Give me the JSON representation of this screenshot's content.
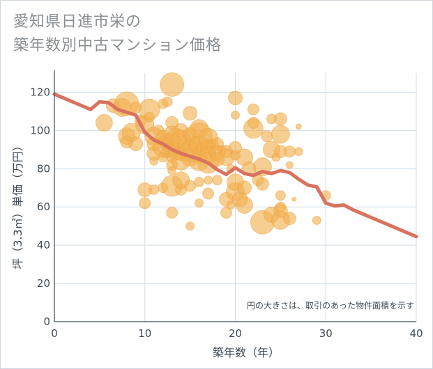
{
  "title": {
    "line1": "愛知県日進市栄の",
    "line2": "築年数別中古マンション価格"
  },
  "colors": {
    "bubble_fill": "#f2b04f",
    "bubble_stroke": "#e9a13a",
    "line": "#d9725e",
    "grid": "#cfdde8",
    "plot_bg": "#ffffff",
    "axis": "#3f4a55"
  },
  "chart_data": {
    "type": "scatter",
    "xlabel": "築年数（年）",
    "ylabel": "坪（3.3㎡）単価（万円）",
    "xlim": [
      0,
      40
    ],
    "ylim": [
      0,
      130
    ],
    "xticks": [
      "0",
      "10",
      "20",
      "30",
      "40"
    ],
    "yticks": [
      "0",
      "20",
      "40",
      "60",
      "80",
      "100",
      "120"
    ],
    "grid": true,
    "note": "円の大きさは、取引のあった物件面積を示す",
    "trend_line": {
      "x": [
        0,
        1,
        2,
        3,
        4,
        5,
        6,
        7,
        8,
        9,
        10,
        11,
        12,
        13,
        14,
        15,
        16,
        17,
        18,
        19,
        20,
        21,
        22,
        23,
        24,
        25,
        26,
        27,
        28,
        29,
        30,
        31,
        32,
        33,
        34,
        35,
        36,
        37,
        38,
        39,
        40
      ],
      "y": [
        119,
        117,
        115,
        113,
        111,
        115,
        114.5,
        111,
        109.5,
        108,
        99,
        95,
        93,
        90,
        88,
        86.5,
        85,
        83,
        79.5,
        77,
        80.5,
        77.5,
        76.5,
        78.5,
        77.5,
        79,
        78,
        74.5,
        71.5,
        70.5,
        62,
        60.5,
        61,
        58.5,
        56.5,
        54.5,
        52.5,
        50.5,
        48.5,
        46.5,
        44.5
      ]
    },
    "bubbles": [
      {
        "x": 5.5,
        "y": 104,
        "size": 12
      },
      {
        "x": 6.5,
        "y": 113,
        "size": 10
      },
      {
        "x": 7.5,
        "y": 112,
        "size": 13
      },
      {
        "x": 8,
        "y": 114,
        "size": 17
      },
      {
        "x": 8,
        "y": 97,
        "size": 12
      },
      {
        "x": 8,
        "y": 94,
        "size": 9
      },
      {
        "x": 8.5,
        "y": 99,
        "size": 13
      },
      {
        "x": 9,
        "y": 93,
        "size": 10
      },
      {
        "x": 9,
        "y": 112,
        "size": 8
      },
      {
        "x": 9.5,
        "y": 105,
        "size": 8
      },
      {
        "x": 10,
        "y": 103,
        "size": 13
      },
      {
        "x": 10.5,
        "y": 111,
        "size": 15
      },
      {
        "x": 10.5,
        "y": 107,
        "size": 7
      },
      {
        "x": 11,
        "y": 97,
        "size": 13
      },
      {
        "x": 11,
        "y": 93,
        "size": 10
      },
      {
        "x": 11,
        "y": 88,
        "size": 10
      },
      {
        "x": 11,
        "y": 84,
        "size": 6
      },
      {
        "x": 11.5,
        "y": 100,
        "size": 8
      },
      {
        "x": 12,
        "y": 114,
        "size": 7
      },
      {
        "x": 12,
        "y": 96,
        "size": 11
      },
      {
        "x": 12,
        "y": 91,
        "size": 14
      },
      {
        "x": 12,
        "y": 86,
        "size": 7
      },
      {
        "x": 12.5,
        "y": 115,
        "size": 7
      },
      {
        "x": 12.5,
        "y": 94,
        "size": 12
      },
      {
        "x": 12.5,
        "y": 89,
        "size": 9
      },
      {
        "x": 13,
        "y": 124,
        "size": 17
      },
      {
        "x": 13,
        "y": 104,
        "size": 9
      },
      {
        "x": 13,
        "y": 98,
        "size": 12
      },
      {
        "x": 13,
        "y": 94,
        "size": 13
      },
      {
        "x": 13,
        "y": 90,
        "size": 11
      },
      {
        "x": 13,
        "y": 86,
        "size": 8
      },
      {
        "x": 13,
        "y": 82,
        "size": 8
      },
      {
        "x": 13,
        "y": 79,
        "size": 6
      },
      {
        "x": 13.5,
        "y": 96,
        "size": 14
      },
      {
        "x": 13.5,
        "y": 89,
        "size": 12
      },
      {
        "x": 14,
        "y": 100,
        "size": 10
      },
      {
        "x": 14,
        "y": 95,
        "size": 14
      },
      {
        "x": 14,
        "y": 88,
        "size": 10
      },
      {
        "x": 14,
        "y": 84,
        "size": 13
      },
      {
        "x": 14.5,
        "y": 92,
        "size": 11
      },
      {
        "x": 15,
        "y": 109,
        "size": 10
      },
      {
        "x": 15,
        "y": 98,
        "size": 10
      },
      {
        "x": 15,
        "y": 92,
        "size": 9
      },
      {
        "x": 15,
        "y": 89,
        "size": 15
      },
      {
        "x": 15,
        "y": 86,
        "size": 13
      },
      {
        "x": 15.5,
        "y": 94,
        "size": 8
      },
      {
        "x": 16,
        "y": 101,
        "size": 13
      },
      {
        "x": 16,
        "y": 97,
        "size": 19
      },
      {
        "x": 16,
        "y": 92,
        "size": 14
      },
      {
        "x": 16,
        "y": 87,
        "size": 11
      },
      {
        "x": 16,
        "y": 84,
        "size": 14
      },
      {
        "x": 16.5,
        "y": 90,
        "size": 10
      },
      {
        "x": 17,
        "y": 96,
        "size": 14
      },
      {
        "x": 17,
        "y": 91,
        "size": 11
      },
      {
        "x": 17,
        "y": 87,
        "size": 12
      },
      {
        "x": 17,
        "y": 83,
        "size": 15
      },
      {
        "x": 17.5,
        "y": 92,
        "size": 9
      },
      {
        "x": 18,
        "y": 93,
        "size": 9
      },
      {
        "x": 18,
        "y": 88,
        "size": 11
      },
      {
        "x": 18,
        "y": 85,
        "size": 10
      },
      {
        "x": 18.5,
        "y": 90,
        "size": 6
      },
      {
        "x": 19,
        "y": 89,
        "size": 9
      },
      {
        "x": 19,
        "y": 86,
        "size": 12
      },
      {
        "x": 19.5,
        "y": 80,
        "size": 6
      },
      {
        "x": 20,
        "y": 117,
        "size": 10
      },
      {
        "x": 20,
        "y": 108,
        "size": 6
      },
      {
        "x": 20,
        "y": 91,
        "size": 9
      },
      {
        "x": 20,
        "y": 87,
        "size": 7
      },
      {
        "x": 10,
        "y": 69,
        "size": 10
      },
      {
        "x": 10,
        "y": 62,
        "size": 8
      },
      {
        "x": 11,
        "y": 69,
        "size": 7
      },
      {
        "x": 12,
        "y": 70,
        "size": 7
      },
      {
        "x": 13,
        "y": 71,
        "size": 15
      },
      {
        "x": 13,
        "y": 57,
        "size": 8
      },
      {
        "x": 14,
        "y": 69,
        "size": 8
      },
      {
        "x": 14,
        "y": 74,
        "size": 12
      },
      {
        "x": 15,
        "y": 71,
        "size": 8
      },
      {
        "x": 15,
        "y": 50,
        "size": 6
      },
      {
        "x": 16,
        "y": 73,
        "size": 7
      },
      {
        "x": 16,
        "y": 62,
        "size": 6
      },
      {
        "x": 17,
        "y": 67,
        "size": 8
      },
      {
        "x": 17,
        "y": 74,
        "size": 6
      },
      {
        "x": 18,
        "y": 74,
        "size": 7
      },
      {
        "x": 19,
        "y": 64,
        "size": 10
      },
      {
        "x": 19,
        "y": 57,
        "size": 8
      },
      {
        "x": 19.5,
        "y": 61,
        "size": 6
      },
      {
        "x": 20,
        "y": 68,
        "size": 13
      },
      {
        "x": 20,
        "y": 73,
        "size": 12
      },
      {
        "x": 20.5,
        "y": 64,
        "size": 11
      },
      {
        "x": 21,
        "y": 70,
        "size": 10
      },
      {
        "x": 21,
        "y": 61,
        "size": 12
      },
      {
        "x": 21,
        "y": 86,
        "size": 12
      },
      {
        "x": 21.5,
        "y": 80,
        "size": 10
      },
      {
        "x": 22,
        "y": 111,
        "size": 8
      },
      {
        "x": 22,
        "y": 101,
        "size": 14
      },
      {
        "x": 22,
        "y": 104,
        "size": 8
      },
      {
        "x": 22.5,
        "y": 74,
        "size": 8
      },
      {
        "x": 23,
        "y": 52,
        "size": 17
      },
      {
        "x": 23,
        "y": 72,
        "size": 9
      },
      {
        "x": 23,
        "y": 81,
        "size": 13
      },
      {
        "x": 23.5,
        "y": 97,
        "size": 8
      },
      {
        "x": 24,
        "y": 90,
        "size": 12
      },
      {
        "x": 24,
        "y": 106,
        "size": 7
      },
      {
        "x": 24,
        "y": 56,
        "size": 11
      },
      {
        "x": 24.5,
        "y": 86,
        "size": 6
      },
      {
        "x": 25,
        "y": 106,
        "size": 9
      },
      {
        "x": 25,
        "y": 98,
        "size": 13
      },
      {
        "x": 25,
        "y": 89,
        "size": 9
      },
      {
        "x": 25,
        "y": 66,
        "size": 7
      },
      {
        "x": 25,
        "y": 58,
        "size": 10
      },
      {
        "x": 25,
        "y": 53,
        "size": 13
      },
      {
        "x": 25,
        "y": 60,
        "size": 7
      },
      {
        "x": 26,
        "y": 89,
        "size": 8
      },
      {
        "x": 26,
        "y": 54,
        "size": 9
      },
      {
        "x": 26,
        "y": 82,
        "size": 5
      },
      {
        "x": 27,
        "y": 89,
        "size": 6
      },
      {
        "x": 27,
        "y": 102,
        "size": 4
      },
      {
        "x": 29,
        "y": 53,
        "size": 6
      },
      {
        "x": 30,
        "y": 66,
        "size": 7
      },
      {
        "x": 26.5,
        "y": 64,
        "size": 3
      }
    ]
  }
}
